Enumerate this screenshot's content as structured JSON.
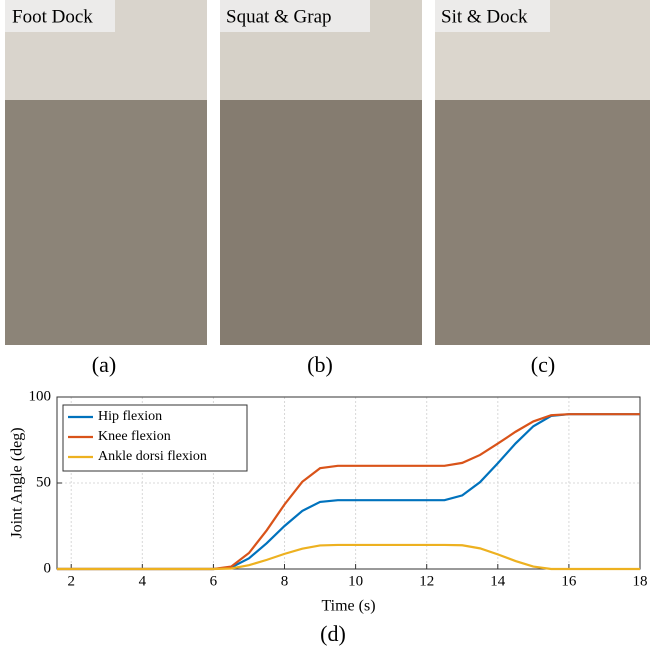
{
  "photos": [
    {
      "caption": "Foot Dock",
      "label": "(a)"
    },
    {
      "caption": "Squat & Grap",
      "label": "(b)"
    },
    {
      "caption": "Sit & Dock",
      "label": "(c)"
    }
  ],
  "chart_label": "(d)",
  "chart_data": {
    "type": "line",
    "x_label": "Time (s)",
    "y_label": "Joint Angle (deg)",
    "x": [
      1.6,
      2,
      3,
      4,
      5,
      6,
      6.5,
      7,
      7.5,
      8,
      8.5,
      9,
      9.5,
      10,
      11,
      12,
      12.5,
      13,
      13.5,
      14,
      14.5,
      15,
      15.5,
      16,
      17,
      18
    ],
    "series": [
      {
        "name": "Hip flexion",
        "color": "#0072bd",
        "values": [
          0,
          0,
          0,
          0,
          0,
          0,
          0.9,
          6.2,
          15,
          25,
          33.8,
          39,
          40,
          40,
          40,
          40,
          40,
          42.8,
          50.5,
          61.5,
          73,
          83,
          89,
          90,
          90,
          90
        ]
      },
      {
        "name": "Knee flexion",
        "color": "#d95319",
        "values": [
          0,
          0,
          0,
          0,
          0,
          0,
          1.4,
          9.3,
          22.5,
          37.5,
          50.7,
          58.6,
          60,
          60,
          60,
          60,
          60,
          61.7,
          66.3,
          72.9,
          79.8,
          85.8,
          89.4,
          90,
          90,
          90
        ]
      },
      {
        "name": "Ankle dorsi flexion",
        "color": "#edb120",
        "values": [
          0,
          0,
          0,
          0,
          0,
          0,
          0.3,
          2.2,
          5.3,
          8.8,
          11.8,
          13.7,
          14,
          14,
          14,
          14,
          14,
          13.8,
          12,
          8.5,
          4.6,
          1.4,
          0,
          0,
          0,
          0
        ]
      }
    ],
    "xlim": [
      1.6,
      18
    ],
    "xticks": [
      2,
      4,
      6,
      8,
      10,
      12,
      14,
      16,
      18
    ],
    "ylim": [
      0,
      100
    ],
    "yticks": [
      0,
      50,
      100
    ],
    "grid": true,
    "legend": "top-left"
  }
}
